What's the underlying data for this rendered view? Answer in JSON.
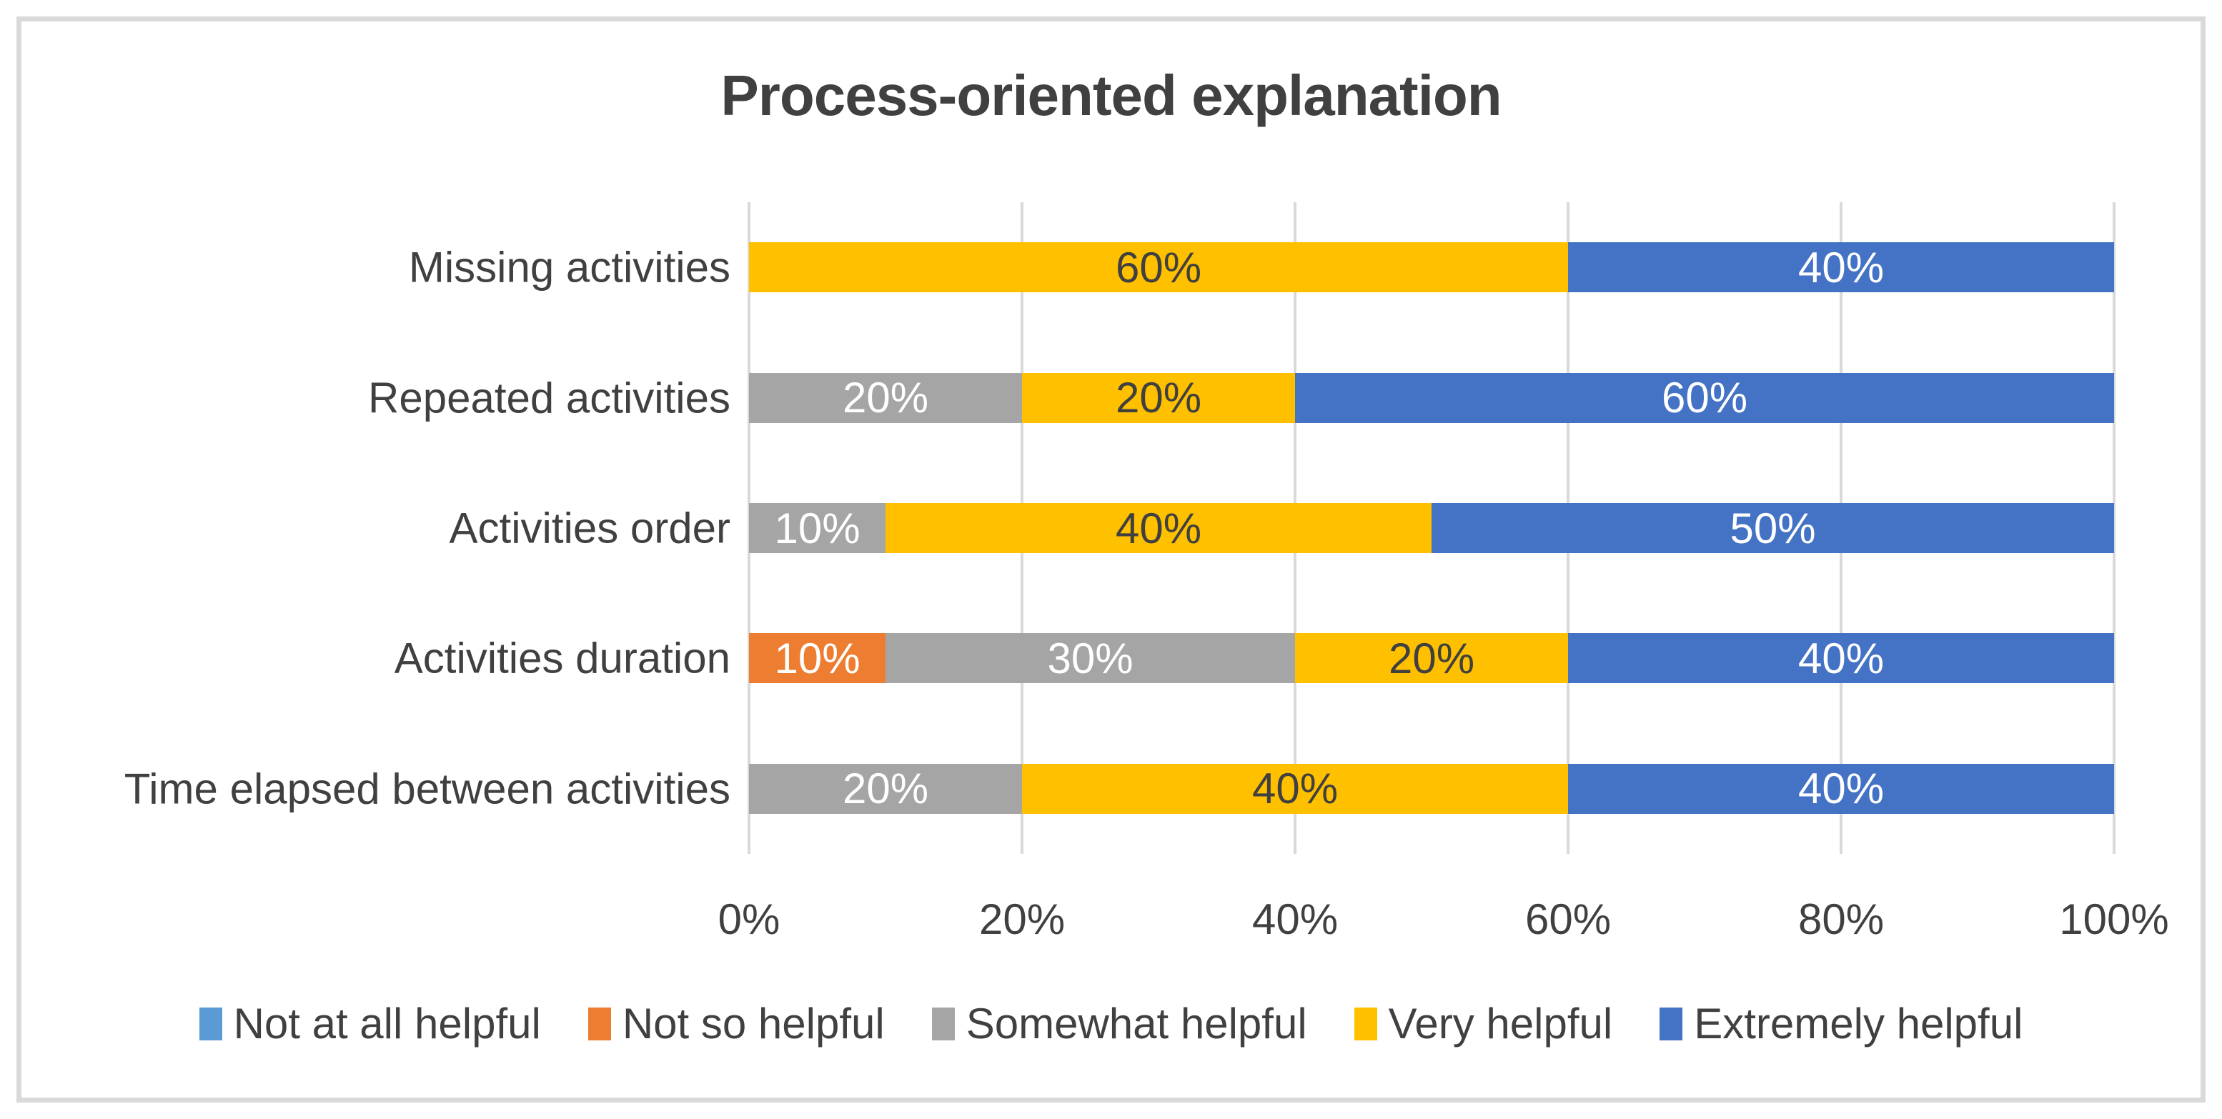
{
  "chart": {
    "frame_border_color": "#D9D9D9",
    "gridline_color": "#D9D9D9",
    "text_color": "#404040",
    "background": "#FFFFFF"
  },
  "chart_data": {
    "type": "bar",
    "stacked": true,
    "orientation": "horizontal",
    "title": "Process-oriented explanation",
    "categories": [
      "Missing activities",
      "Repeated activities",
      "Activities order",
      "Activities duration",
      "Time elapsed between activities"
    ],
    "series": [
      {
        "name": "Not at all helpful",
        "color": "#5B9BD5",
        "values": [
          0,
          0,
          0,
          0,
          0
        ]
      },
      {
        "name": "Not so helpful",
        "color": "#ED7D31",
        "values": [
          0,
          0,
          0,
          10,
          0
        ]
      },
      {
        "name": "Somewhat helpful",
        "color": "#A5A5A5",
        "values": [
          0,
          20,
          10,
          30,
          20
        ]
      },
      {
        "name": "Very helpful",
        "color": "#FFC000",
        "values": [
          60,
          20,
          40,
          20,
          40
        ]
      },
      {
        "name": "Extremely helpful",
        "color": "#4472C4",
        "values": [
          40,
          60,
          50,
          40,
          40
        ]
      }
    ],
    "data_labels": {
      "format": "percent",
      "dark_text_color": "#404040",
      "light_text_color": "#FFFFFF"
    },
    "x_axis": {
      "ticks": [
        "0%",
        "20%",
        "40%",
        "60%",
        "80%",
        "100%"
      ],
      "min": 0,
      "max": 100
    },
    "grid": true,
    "legend_position": "bottom"
  }
}
